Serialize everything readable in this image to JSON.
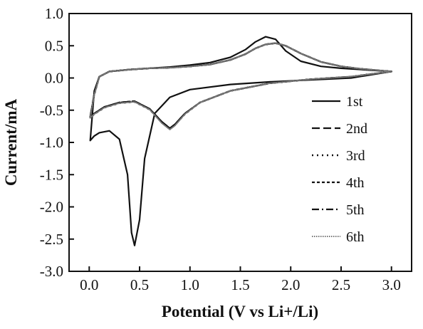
{
  "chart_data": {
    "type": "line",
    "xlabel": "Potential (V vs Li+/Li)",
    "ylabel": "Current/mA",
    "xlim": [
      -0.2,
      3.2
    ],
    "ylim": [
      -3.0,
      1.0
    ],
    "x_ticks": [
      "0.0",
      "0.5",
      "1.0",
      "1.5",
      "2.0",
      "2.5",
      "3.0"
    ],
    "y_ticks": [
      "1.0",
      "0.5",
      "0.0",
      "-0.5",
      "-1.0",
      "-1.5",
      "-2.0",
      "-2.5",
      "-3.0"
    ],
    "grid": false,
    "legend_position": "right",
    "series": [
      {
        "name": "1st",
        "style": "solid",
        "color": "#111111",
        "x": [
          3.0,
          2.6,
          2.2,
          1.8,
          1.4,
          1.0,
          0.8,
          0.65,
          0.55,
          0.5,
          0.45,
          0.42,
          0.38,
          0.3,
          0.2,
          0.1,
          0.05,
          0.01,
          0.05,
          0.1,
          0.2,
          0.4,
          0.6,
          0.8,
          1.0,
          1.2,
          1.4,
          1.55,
          1.65,
          1.75,
          1.85,
          1.95,
          2.1,
          2.3,
          2.5,
          2.7,
          3.0
        ],
        "y": [
          0.1,
          0.0,
          -0.03,
          -0.06,
          -0.1,
          -0.18,
          -0.3,
          -0.55,
          -1.25,
          -2.2,
          -2.6,
          -2.4,
          -1.5,
          -0.95,
          -0.82,
          -0.85,
          -0.9,
          -0.97,
          -0.2,
          0.02,
          0.1,
          0.13,
          0.15,
          0.17,
          0.2,
          0.24,
          0.32,
          0.44,
          0.56,
          0.64,
          0.6,
          0.42,
          0.26,
          0.18,
          0.15,
          0.13,
          0.1
        ]
      },
      {
        "name": "2nd",
        "style": "dashed",
        "color": "#111111",
        "x": [
          3.0,
          2.6,
          2.2,
          1.8,
          1.4,
          1.1,
          0.95,
          0.85,
          0.8,
          0.72,
          0.6,
          0.45,
          0.3,
          0.15,
          0.05,
          0.01,
          0.05,
          0.1,
          0.2,
          0.4,
          0.6,
          0.8,
          1.0,
          1.2,
          1.4,
          1.55,
          1.65,
          1.75,
          1.85,
          1.95,
          2.1,
          2.3,
          2.5,
          2.7,
          3.0
        ],
        "y": [
          0.1,
          0.02,
          -0.02,
          -0.08,
          -0.2,
          -0.38,
          -0.55,
          -0.72,
          -0.78,
          -0.68,
          -0.48,
          -0.36,
          -0.38,
          -0.45,
          -0.55,
          -0.6,
          -0.25,
          0.02,
          0.1,
          0.13,
          0.15,
          0.16,
          0.18,
          0.21,
          0.28,
          0.37,
          0.46,
          0.52,
          0.54,
          0.5,
          0.38,
          0.25,
          0.18,
          0.14,
          0.1
        ]
      },
      {
        "name": "3rd",
        "style": "dotted",
        "color": "#111111",
        "x": [
          3.0,
          2.6,
          2.2,
          1.8,
          1.4,
          1.1,
          0.95,
          0.85,
          0.8,
          0.72,
          0.6,
          0.45,
          0.3,
          0.15,
          0.05,
          0.01,
          0.05,
          0.1,
          0.2,
          0.4,
          0.6,
          0.8,
          1.0,
          1.2,
          1.4,
          1.55,
          1.65,
          1.75,
          1.85,
          1.95,
          2.1,
          2.3,
          2.5,
          2.7,
          3.0
        ],
        "y": [
          0.1,
          0.02,
          -0.02,
          -0.08,
          -0.2,
          -0.38,
          -0.56,
          -0.73,
          -0.79,
          -0.69,
          -0.49,
          -0.37,
          -0.39,
          -0.46,
          -0.56,
          -0.62,
          -0.26,
          0.02,
          0.1,
          0.13,
          0.15,
          0.16,
          0.18,
          0.21,
          0.28,
          0.37,
          0.46,
          0.52,
          0.54,
          0.5,
          0.38,
          0.25,
          0.18,
          0.14,
          0.1
        ]
      },
      {
        "name": "4th",
        "style": "short-dash",
        "color": "#111111",
        "x": [
          3.0,
          2.6,
          2.2,
          1.8,
          1.4,
          1.1,
          0.95,
          0.85,
          0.8,
          0.72,
          0.6,
          0.45,
          0.3,
          0.15,
          0.05,
          0.01,
          0.05,
          0.1,
          0.2,
          0.4,
          0.6,
          0.8,
          1.0,
          1.2,
          1.4,
          1.55,
          1.65,
          1.75,
          1.85,
          1.95,
          2.1,
          2.3,
          2.5,
          2.7,
          3.0
        ],
        "y": [
          0.1,
          0.02,
          -0.02,
          -0.08,
          -0.2,
          -0.38,
          -0.55,
          -0.72,
          -0.78,
          -0.68,
          -0.48,
          -0.36,
          -0.38,
          -0.45,
          -0.55,
          -0.61,
          -0.25,
          0.02,
          0.1,
          0.13,
          0.15,
          0.16,
          0.18,
          0.21,
          0.28,
          0.37,
          0.46,
          0.52,
          0.54,
          0.5,
          0.38,
          0.25,
          0.18,
          0.14,
          0.1
        ]
      },
      {
        "name": "5th",
        "style": "dash-dot",
        "color": "#111111",
        "x": [
          3.0,
          2.6,
          2.2,
          1.8,
          1.4,
          1.1,
          0.95,
          0.85,
          0.8,
          0.72,
          0.6,
          0.45,
          0.3,
          0.15,
          0.05,
          0.01,
          0.05,
          0.1,
          0.2,
          0.4,
          0.6,
          0.8,
          1.0,
          1.2,
          1.4,
          1.55,
          1.65,
          1.75,
          1.85,
          1.95,
          2.1,
          2.3,
          2.5,
          2.7,
          3.0
        ],
        "y": [
          0.1,
          0.02,
          -0.02,
          -0.08,
          -0.2,
          -0.38,
          -0.55,
          -0.72,
          -0.78,
          -0.68,
          -0.48,
          -0.36,
          -0.38,
          -0.45,
          -0.55,
          -0.6,
          -0.25,
          0.02,
          0.1,
          0.13,
          0.15,
          0.16,
          0.18,
          0.21,
          0.28,
          0.37,
          0.46,
          0.52,
          0.54,
          0.5,
          0.38,
          0.25,
          0.18,
          0.14,
          0.1
        ]
      },
      {
        "name": "6th",
        "style": "fine-dotted",
        "color": "#777777",
        "x": [
          3.0,
          2.6,
          2.2,
          1.8,
          1.4,
          1.1,
          0.95,
          0.85,
          0.8,
          0.72,
          0.6,
          0.45,
          0.3,
          0.15,
          0.05,
          0.01,
          0.05,
          0.1,
          0.2,
          0.4,
          0.6,
          0.8,
          1.0,
          1.2,
          1.4,
          1.55,
          1.65,
          1.75,
          1.85,
          1.95,
          2.1,
          2.3,
          2.5,
          2.7,
          3.0
        ],
        "y": [
          0.1,
          0.02,
          -0.02,
          -0.08,
          -0.2,
          -0.38,
          -0.56,
          -0.74,
          -0.8,
          -0.7,
          -0.49,
          -0.37,
          -0.39,
          -0.46,
          -0.56,
          -0.62,
          -0.26,
          0.02,
          0.1,
          0.13,
          0.15,
          0.16,
          0.18,
          0.21,
          0.28,
          0.37,
          0.46,
          0.52,
          0.54,
          0.5,
          0.38,
          0.25,
          0.18,
          0.14,
          0.1
        ]
      }
    ]
  }
}
